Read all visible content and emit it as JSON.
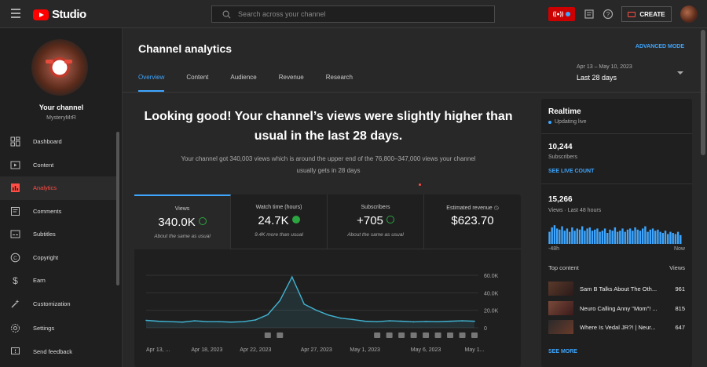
{
  "app": {
    "logo_text": "Studio"
  },
  "search": {
    "placeholder": "Search across your channel"
  },
  "header": {
    "create_label": "CREATE"
  },
  "sidebar": {
    "your_channel": "Your channel",
    "channel_name": "MysteryMrR",
    "items": [
      {
        "label": "Dashboard",
        "icon": "dashboard-icon"
      },
      {
        "label": "Content",
        "icon": "content-icon"
      },
      {
        "label": "Analytics",
        "icon": "analytics-icon",
        "active": true
      },
      {
        "label": "Comments",
        "icon": "comments-icon"
      },
      {
        "label": "Subtitles",
        "icon": "subtitles-icon"
      },
      {
        "label": "Copyright",
        "icon": "copyright-icon"
      },
      {
        "label": "Earn",
        "icon": "earn-icon"
      },
      {
        "label": "Customization",
        "icon": "customization-icon"
      }
    ],
    "bottom_items": [
      {
        "label": "Settings",
        "icon": "settings-icon"
      },
      {
        "label": "Send feedback",
        "icon": "feedback-icon"
      }
    ]
  },
  "page": {
    "title": "Channel analytics",
    "advanced_mode": "ADVANCED MODE",
    "tabs": [
      "Overview",
      "Content",
      "Audience",
      "Revenue",
      "Research"
    ],
    "date_range": "Apr 13 – May 10, 2023",
    "date_label": "Last 28 days"
  },
  "summary": {
    "headline_line1": "Looking good! Your channel’s views were slightly higher than",
    "headline_line2": "usual in the last 28 days.",
    "detail_line1": "Your channel got 340,003 views which is around the upper end of the 76,800–347,000 views your channel",
    "detail_line2": "usually gets in 28 days"
  },
  "metrics": [
    {
      "label": "Views",
      "value": "340.0K",
      "note": "About the same as usual",
      "check": "outline"
    },
    {
      "label": "Watch time (hours)",
      "value": "24.7K",
      "note": "9.4K more than usual",
      "check": "filled"
    },
    {
      "label": "Subscribers",
      "value": "+705",
      "note": "About the same as usual",
      "check": "outline"
    },
    {
      "label": "Estimated revenue",
      "value": "$623.70",
      "note": "",
      "check": "none"
    }
  ],
  "chart_data": {
    "type": "area",
    "title": "",
    "xlabel": "",
    "ylabel": "",
    "ylim": [
      0,
      60000
    ],
    "y_ticks": [
      "0",
      "20.0K",
      "40.0K",
      "60.0K"
    ],
    "x_tick_labels": [
      "Apr 13, ...",
      "Apr 18, 2023",
      "Apr 22, 2023",
      "Apr 27, 2023",
      "May 1, 2023",
      "May 6, 2023",
      "May 1..."
    ],
    "values": [
      8500,
      7500,
      7000,
      6500,
      8000,
      7000,
      7000,
      6500,
      7000,
      9000,
      15000,
      31000,
      58000,
      27000,
      20000,
      14500,
      11000,
      9500,
      7500,
      7000,
      8000,
      7500,
      6800,
      7200,
      7000,
      7500,
      8000,
      7500
    ],
    "color": "#41b4d2"
  },
  "realtime": {
    "title": "Realtime",
    "status": "Updating live",
    "subscribers_value": "10,244",
    "subscribers_label": "Subscribers",
    "see_live": "SEE LIVE COUNT",
    "views_value": "15,266",
    "views_label": "Views · Last 48 hours",
    "axis_left": "-48h",
    "axis_right": "Now",
    "bars": [
      0.55,
      0.75,
      0.85,
      0.7,
      0.65,
      0.8,
      0.6,
      0.7,
      0.55,
      0.75,
      0.6,
      0.7,
      0.65,
      0.8,
      0.6,
      0.7,
      0.75,
      0.6,
      0.65,
      0.7,
      0.55,
      0.6,
      0.7,
      0.5,
      0.65,
      0.6,
      0.75,
      0.55,
      0.6,
      0.7,
      0.55,
      0.65,
      0.7,
      0.6,
      0.75,
      0.65,
      0.6,
      0.7,
      0.8,
      0.55,
      0.65,
      0.7,
      0.6,
      0.65,
      0.55,
      0.5,
      0.6,
      0.45,
      0.55,
      0.5,
      0.45,
      0.55,
      0.4
    ],
    "bar_color": "#3ea6ff",
    "top_content_label": "Top content",
    "views_col": "Views",
    "top_content": [
      {
        "title": "Sam B Talks About The Oth...",
        "views": "961"
      },
      {
        "title": "Neuro Calling Anny \"Mom\"! ...",
        "views": "815"
      },
      {
        "title": "Where Is Vedal JR?! | Neur...",
        "views": "647"
      }
    ],
    "see_more": "SEE MORE"
  },
  "colors": {
    "accent": "#3ea6ff",
    "brand": "#ff0000",
    "active_nav": "#ff4e45",
    "success": "#2ba640"
  }
}
